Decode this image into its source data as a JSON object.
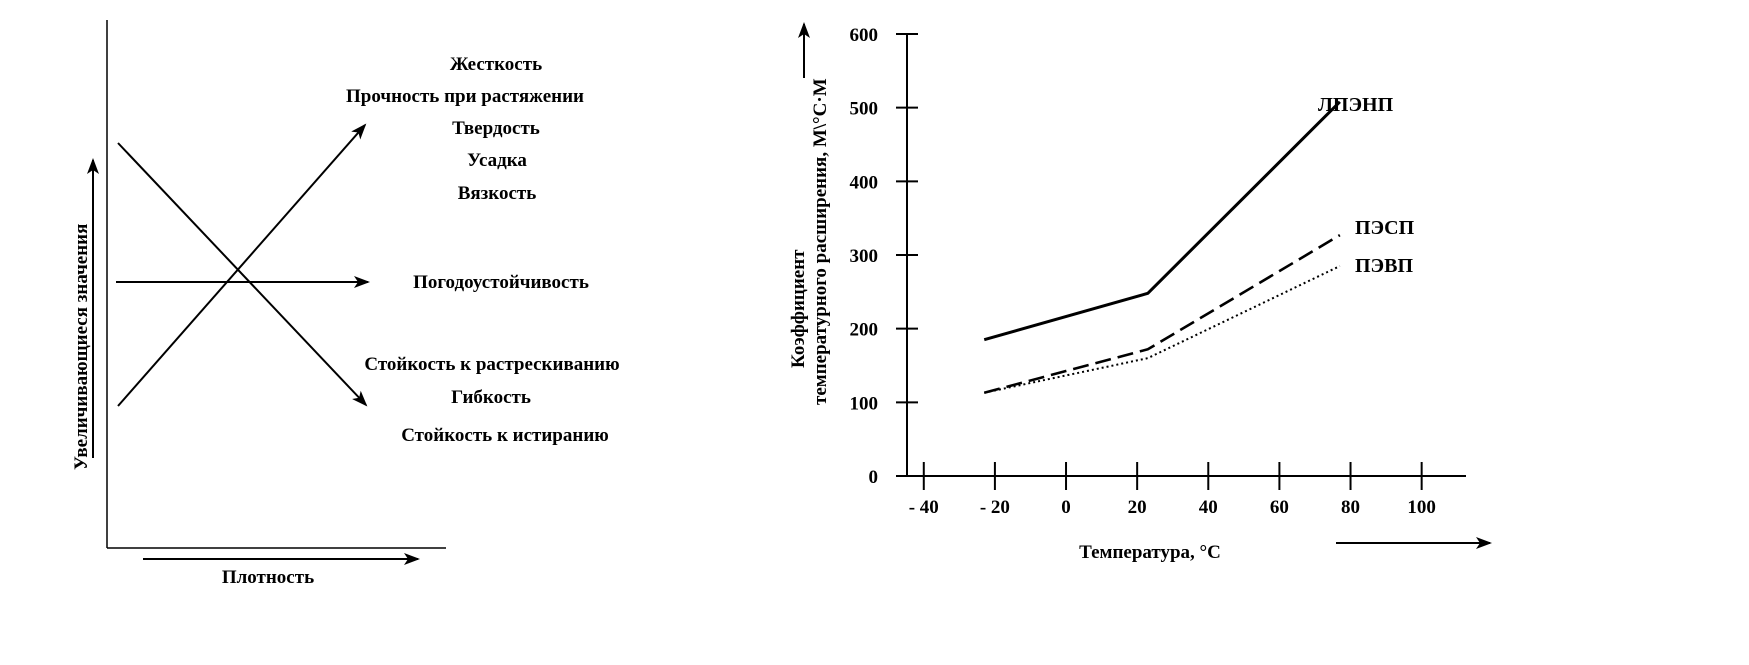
{
  "chart_data": [
    {
      "type": "line",
      "title": "",
      "xlabel": "Плотность",
      "ylabel": "Увеличивающиеся значения",
      "groups": {
        "increasing": [
          "Жесткость",
          "Прочность при растяжении",
          "Твердость",
          "Усадка",
          "Вязкость"
        ],
        "constant": [
          "Погодоустойчивость"
        ],
        "decreasing": [
          "Стойкость к растрескиванию",
          "Гибкость",
          "Стойкость к истиранию"
        ]
      }
    },
    {
      "type": "line",
      "title": "",
      "xlabel": "Температура, °C",
      "ylabel_line1": "Коэффициент",
      "ylabel_line2": "температурного  расширения, М\\°С·М",
      "xlim": [
        -45,
        115
      ],
      "ylim": [
        0,
        600
      ],
      "x_ticks": [
        -40,
        -20,
        0,
        20,
        40,
        60,
        80,
        100
      ],
      "x_tick_labels": [
        "- 40",
        "- 20",
        "0",
        "20",
        "40",
        "60",
        "80",
        "100"
      ],
      "y_ticks": [
        0,
        100,
        200,
        300,
        400,
        500,
        600
      ],
      "y_tick_labels": [
        "0",
        "100",
        "200",
        "300",
        "400",
        "500",
        "600"
      ],
      "series": [
        {
          "name": "ЛПЭНП",
          "style": "solid",
          "x": [
            -23,
            23,
            77
          ],
          "y": [
            185,
            248,
            508
          ]
        },
        {
          "name": "ПЭСП",
          "style": "dashed",
          "x": [
            -23,
            23,
            77
          ],
          "y": [
            113,
            172,
            327
          ]
        },
        {
          "name": "ПЭВП",
          "style": "dotted",
          "x": [
            -23,
            23,
            77
          ],
          "y": [
            113,
            160,
            285
          ]
        }
      ]
    }
  ]
}
